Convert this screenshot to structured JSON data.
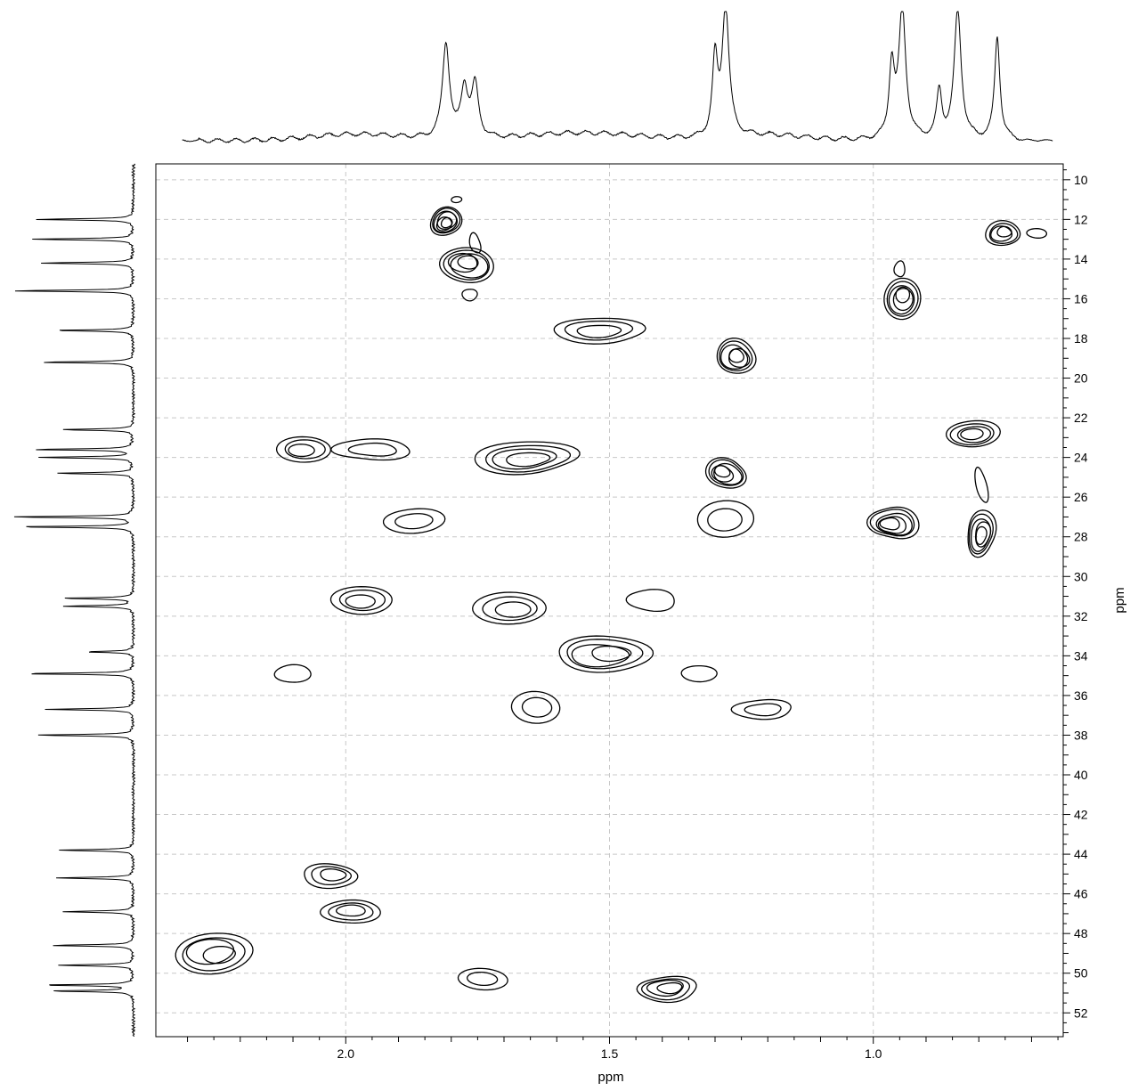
{
  "chart_data": {
    "type": "contour",
    "title": "",
    "xlabel": "ppm",
    "ylabel": "ppm",
    "xlim": [
      2.36,
      0.64
    ],
    "ylim": [
      9.2,
      53.2
    ],
    "x_axis_reversed": true,
    "x_ticks": [
      2.0,
      1.5,
      1.0
    ],
    "x_tick_labels": [
      "2.0",
      "1.5",
      "1.0"
    ],
    "y_ticks": [
      10,
      12,
      14,
      16,
      18,
      20,
      22,
      24,
      26,
      28,
      30,
      32,
      34,
      36,
      38,
      40,
      42,
      44,
      46,
      48,
      50,
      52
    ],
    "y_tick_labels": [
      "10",
      "12",
      "14",
      "16",
      "18",
      "20",
      "22",
      "24",
      "26",
      "28",
      "30",
      "32",
      "34",
      "36",
      "38",
      "40",
      "42",
      "44",
      "46",
      "48",
      "50",
      "52"
    ],
    "grid": true,
    "colors": {
      "line": "#000000",
      "grid": "#c8c8c8"
    },
    "cross_peaks": [
      {
        "x": 1.81,
        "y": 12.1,
        "w": 0.03,
        "h": 0.7,
        "levels": 6
      },
      {
        "x": 1.77,
        "y": 14.3,
        "w": 0.05,
        "h": 0.9,
        "levels": 5
      },
      {
        "x": 1.79,
        "y": 11.0,
        "w": 0.01,
        "h": 0.15,
        "levels": 1
      },
      {
        "x": 1.755,
        "y": 13.2,
        "w": 0.01,
        "h": 0.5,
        "levels": 1
      },
      {
        "x": 1.765,
        "y": 15.8,
        "w": 0.014,
        "h": 0.3,
        "levels": 1
      },
      {
        "x": 0.755,
        "y": 12.7,
        "w": 0.034,
        "h": 0.6,
        "levels": 4
      },
      {
        "x": 0.69,
        "y": 12.7,
        "w": 0.018,
        "h": 0.25,
        "levels": 1
      },
      {
        "x": 0.945,
        "y": 16.0,
        "w": 0.036,
        "h": 1.0,
        "levels": 5
      },
      {
        "x": 0.95,
        "y": 14.5,
        "w": 0.01,
        "h": 0.4,
        "levels": 1
      },
      {
        "x": 1.52,
        "y": 17.6,
        "w": 0.085,
        "h": 0.65,
        "levels": 3
      },
      {
        "x": 1.26,
        "y": 18.9,
        "w": 0.038,
        "h": 0.85,
        "levels": 5
      },
      {
        "x": 0.81,
        "y": 22.8,
        "w": 0.048,
        "h": 0.7,
        "levels": 4
      },
      {
        "x": 2.08,
        "y": 23.6,
        "w": 0.055,
        "h": 0.6,
        "levels": 3
      },
      {
        "x": 1.95,
        "y": 23.6,
        "w": 0.07,
        "h": 0.55,
        "levels": 2
      },
      {
        "x": 1.66,
        "y": 24.0,
        "w": 0.1,
        "h": 0.8,
        "levels": 4
      },
      {
        "x": 1.28,
        "y": 24.8,
        "w": 0.038,
        "h": 0.75,
        "levels": 5
      },
      {
        "x": 1.87,
        "y": 27.2,
        "w": 0.055,
        "h": 0.65,
        "levels": 2
      },
      {
        "x": 1.28,
        "y": 27.1,
        "w": 0.058,
        "h": 0.85,
        "levels": 2
      },
      {
        "x": 0.96,
        "y": 27.3,
        "w": 0.045,
        "h": 0.85,
        "levels": 5
      },
      {
        "x": 0.795,
        "y": 27.8,
        "w": 0.028,
        "h": 1.1,
        "levels": 5
      },
      {
        "x": 0.795,
        "y": 25.4,
        "w": 0.01,
        "h": 0.9,
        "levels": 1
      },
      {
        "x": 1.97,
        "y": 31.2,
        "w": 0.058,
        "h": 0.7,
        "levels": 3
      },
      {
        "x": 1.69,
        "y": 31.6,
        "w": 0.07,
        "h": 0.8,
        "levels": 3
      },
      {
        "x": 1.42,
        "y": 31.2,
        "w": 0.045,
        "h": 0.55,
        "levels": 1
      },
      {
        "x": 1.51,
        "y": 33.9,
        "w": 0.09,
        "h": 0.9,
        "levels": 4
      },
      {
        "x": 2.1,
        "y": 34.9,
        "w": 0.034,
        "h": 0.45,
        "levels": 1
      },
      {
        "x": 1.33,
        "y": 34.9,
        "w": 0.034,
        "h": 0.4,
        "levels": 1
      },
      {
        "x": 1.64,
        "y": 36.6,
        "w": 0.046,
        "h": 0.8,
        "levels": 2
      },
      {
        "x": 1.21,
        "y": 36.7,
        "w": 0.055,
        "h": 0.5,
        "levels": 2
      },
      {
        "x": 2.03,
        "y": 45.1,
        "w": 0.052,
        "h": 0.6,
        "levels": 3
      },
      {
        "x": 1.99,
        "y": 46.9,
        "w": 0.055,
        "h": 0.6,
        "levels": 3
      },
      {
        "x": 2.25,
        "y": 49.0,
        "w": 0.075,
        "h": 1.0,
        "levels": 4
      },
      {
        "x": 1.74,
        "y": 50.3,
        "w": 0.046,
        "h": 0.55,
        "levels": 2
      },
      {
        "x": 1.39,
        "y": 50.8,
        "w": 0.055,
        "h": 0.65,
        "levels": 4
      }
    ],
    "projection_1h": {
      "baseline_x": [
        2.31,
        0.66
      ],
      "peaks": [
        {
          "x": 1.81,
          "h": 0.74,
          "w": 0.008
        },
        {
          "x": 1.775,
          "h": 0.38,
          "w": 0.008
        },
        {
          "x": 1.755,
          "h": 0.4,
          "w": 0.008
        },
        {
          "x": 1.3,
          "h": 0.58,
          "w": 0.006
        },
        {
          "x": 1.28,
          "h": 1.0,
          "w": 0.008
        },
        {
          "x": 0.965,
          "h": 0.56,
          "w": 0.006
        },
        {
          "x": 0.945,
          "h": 1.0,
          "w": 0.008
        },
        {
          "x": 0.875,
          "h": 0.36,
          "w": 0.006
        },
        {
          "x": 0.84,
          "h": 1.0,
          "w": 0.008
        },
        {
          "x": 0.765,
          "h": 0.8,
          "w": 0.006
        }
      ]
    },
    "projection_13c": {
      "peaks": [
        {
          "y": 12.0,
          "h": 0.78
        },
        {
          "y": 13.0,
          "h": 0.82
        },
        {
          "y": 14.2,
          "h": 0.74
        },
        {
          "y": 15.6,
          "h": 0.96
        },
        {
          "y": 17.6,
          "h": 0.64
        },
        {
          "y": 19.2,
          "h": 0.74
        },
        {
          "y": 22.6,
          "h": 0.58
        },
        {
          "y": 23.6,
          "h": 0.8
        },
        {
          "y": 24.0,
          "h": 0.76
        },
        {
          "y": 24.8,
          "h": 0.62
        },
        {
          "y": 27.0,
          "h": 0.98
        },
        {
          "y": 27.5,
          "h": 0.92
        },
        {
          "y": 31.1,
          "h": 0.58
        },
        {
          "y": 31.5,
          "h": 0.56
        },
        {
          "y": 33.8,
          "h": 0.38
        },
        {
          "y": 34.9,
          "h": 0.88
        },
        {
          "y": 36.7,
          "h": 0.7
        },
        {
          "y": 38.0,
          "h": 0.78
        },
        {
          "y": 43.8,
          "h": 0.6
        },
        {
          "y": 45.2,
          "h": 0.62
        },
        {
          "y": 46.9,
          "h": 0.56
        },
        {
          "y": 48.6,
          "h": 0.66
        },
        {
          "y": 49.6,
          "h": 0.6
        },
        {
          "y": 50.6,
          "h": 0.72
        },
        {
          "y": 50.9,
          "h": 0.66
        }
      ]
    }
  }
}
